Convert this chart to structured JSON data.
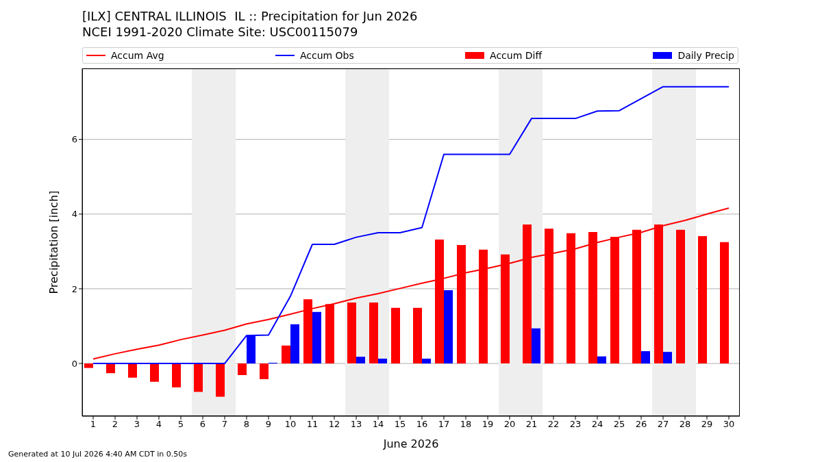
{
  "chart_data": {
    "type": "bar",
    "title": "[ILX] CENTRAL ILLINOIS  IL :: Precipitation for Jun 2026",
    "subtitle": "NCEI 1991-2020 Climate Site: USC00115079",
    "xlabel": "June 2026",
    "ylabel": "Precipitation [inch]",
    "x": [
      1,
      2,
      3,
      4,
      5,
      6,
      7,
      8,
      9,
      10,
      11,
      12,
      13,
      14,
      15,
      16,
      17,
      18,
      19,
      20,
      21,
      22,
      23,
      24,
      25,
      26,
      27,
      28,
      29,
      30
    ],
    "series": [
      {
        "name": "Accum Avg",
        "type": "line",
        "color": "#ff0000",
        "values": [
          0.12,
          0.26,
          0.38,
          0.49,
          0.64,
          0.76,
          0.89,
          1.06,
          1.18,
          1.32,
          1.47,
          1.6,
          1.75,
          1.87,
          2.01,
          2.15,
          2.28,
          2.43,
          2.55,
          2.68,
          2.84,
          2.95,
          3.07,
          3.24,
          3.38,
          3.51,
          3.69,
          3.83,
          4.0,
          4.16
        ]
      },
      {
        "name": "Accum Obs",
        "type": "line",
        "color": "#0000ff",
        "values": [
          0,
          0,
          0,
          0,
          0,
          0,
          0,
          0.75,
          0.76,
          1.8,
          3.19,
          3.19,
          3.38,
          3.5,
          3.5,
          3.64,
          5.6,
          5.6,
          5.6,
          5.6,
          6.56,
          6.56,
          6.56,
          6.76,
          6.77,
          7.09,
          7.41,
          7.41,
          7.41,
          7.41
        ]
      },
      {
        "name": "Accum Diff",
        "color": "#ff0000",
        "values": [
          -0.12,
          -0.26,
          -0.38,
          -0.49,
          -0.64,
          -0.76,
          -0.89,
          -0.31,
          -0.42,
          0.48,
          1.72,
          1.59,
          1.63,
          1.63,
          1.49,
          1.49,
          3.32,
          3.17,
          3.05,
          2.92,
          3.72,
          3.61,
          3.49,
          3.52,
          3.39,
          3.58,
          3.72,
          3.58,
          3.41,
          3.25
        ]
      },
      {
        "name": "Daily Precip",
        "color": "#0000ff",
        "values": [
          0,
          0,
          0,
          0,
          0,
          0,
          0,
          0.75,
          0.02,
          1.05,
          1.38,
          0,
          0.18,
          0.13,
          0,
          0.13,
          1.96,
          0,
          0,
          0,
          0.94,
          0,
          0,
          0.19,
          0,
          0.33,
          0.31,
          0,
          0,
          0
        ]
      }
    ],
    "xlim": [
      0.5,
      30.5
    ],
    "xticks": [
      1,
      2,
      3,
      4,
      5,
      6,
      7,
      8,
      9,
      10,
      11,
      12,
      13,
      14,
      15,
      16,
      17,
      18,
      19,
      20,
      21,
      22,
      23,
      24,
      25,
      26,
      27,
      28,
      29,
      30
    ],
    "ylim": [
      -1.41,
      7.9
    ],
    "yticks": [
      0,
      2,
      4,
      6
    ],
    "grid": "y",
    "legend": "top",
    "marker": "none",
    "line_style": "solid",
    "bands": [
      {
        "axis": "x",
        "from": 5.5,
        "to": 7.5,
        "color": "#eeeeee"
      },
      {
        "axis": "x",
        "from": 12.5,
        "to": 14.5,
        "color": "#eeeeee"
      },
      {
        "axis": "x",
        "from": 19.5,
        "to": 21.5,
        "color": "#eeeeee"
      },
      {
        "axis": "x",
        "from": 26.5,
        "to": 28.5,
        "color": "#eeeeee"
      }
    ],
    "annotations": [
      "Generated at 10 Jul 2026 4:40 AM CDT in 0.50s"
    ]
  }
}
